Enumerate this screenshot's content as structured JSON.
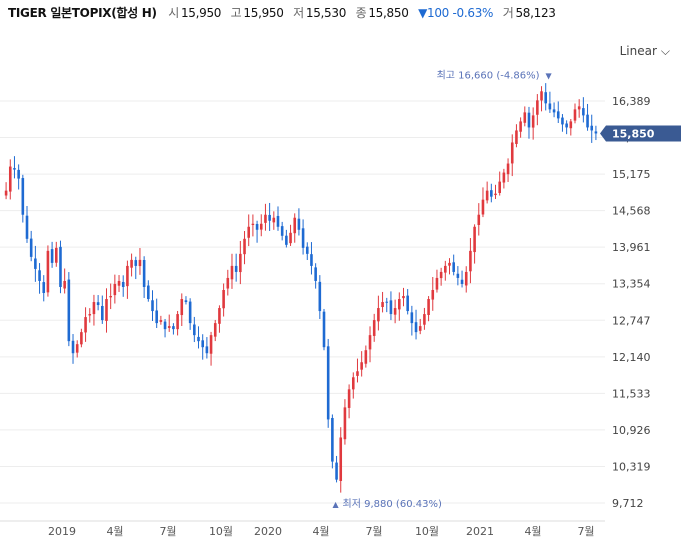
{
  "header": {
    "name": "TIGER 일본TOPIX(합성 H)",
    "open_label": "시",
    "open": "15,950",
    "high_label": "고",
    "high": "15,950",
    "low_label": "저",
    "low": "15,530",
    "close_label": "종",
    "close": "15,850",
    "change": "▼100 -0.63%",
    "volume_label": "거",
    "volume": "58,123"
  },
  "scale_selector": {
    "label": "Linear"
  },
  "colors": {
    "up": "#e0393e",
    "down": "#1e6ad2",
    "price_tag": "#3a5a93",
    "annotation": "#5a73b8"
  },
  "chart_data": {
    "type": "candlestick",
    "x_tick_labels": [
      "2019",
      "4월",
      "7월",
      "10월",
      "2020",
      "4월",
      "7월",
      "10월",
      "2021",
      "4월",
      "7월"
    ],
    "y_tick_labels": [
      "16,389",
      "15,782",
      "15,175",
      "14,568",
      "13,961",
      "13,354",
      "12,747",
      "12,140",
      "11,533",
      "10,926",
      "10,319",
      "9,712"
    ],
    "y_ticks": [
      16389,
      15782,
      15175,
      14568,
      13961,
      13354,
      12747,
      12140,
      11533,
      10926,
      10319,
      9712
    ],
    "ylim": [
      9500,
      17000
    ],
    "last_price": 15850,
    "last_price_label": "15,850",
    "max_annotation": "최고 16,660 (-4.86%)",
    "min_annotation": "최저 9,880 (60.43%)",
    "max_value": 16660,
    "min_value": 9880,
    "grid": "horizontal",
    "close_series": [
      14900,
      15300,
      15250,
      15100,
      14500,
      14100,
      13800,
      13600,
      13400,
      13200,
      13900,
      13700,
      13950,
      13300,
      13400,
      12400,
      12200,
      12350,
      12550,
      12800,
      12850,
      13050,
      13000,
      12750,
      13100,
      13150,
      13350,
      13400,
      13300,
      13650,
      13750,
      13650,
      13750,
      13300,
      13100,
      12900,
      12700,
      12750,
      12600,
      12650,
      12600,
      12850,
      13100,
      13050,
      12700,
      12500,
      12400,
      12300,
      12200,
      12500,
      12700,
      12950,
      13250,
      13450,
      13650,
      13550,
      13850,
      14100,
      14300,
      14350,
      14250,
      14350,
      14500,
      14400,
      14450,
      14300,
      14150,
      14000,
      14200,
      14450,
      14250,
      13950,
      13850,
      13650,
      13400,
      12900,
      12300,
      11100,
      10400,
      10100,
      10800,
      11300,
      11600,
      11800,
      11900,
      12050,
      12250,
      12500,
      12750,
      12950,
      13050,
      13050,
      12850,
      12950,
      13100,
      13150,
      12900,
      12700,
      12550,
      12650,
      12850,
      13100,
      13250,
      13450,
      13550,
      13650,
      13700,
      13550,
      13450,
      13350,
      13550,
      13900,
      14300,
      14500,
      14750,
      14900,
      14800,
      14850,
      15050,
      15200,
      15350,
      15700,
      15900,
      16050,
      16200,
      15950,
      16150,
      16400,
      16550,
      16350,
      16250,
      16200,
      16100,
      16000,
      15950,
      16050,
      16250,
      16300,
      16150,
      15950,
      15900,
      15850
    ]
  }
}
